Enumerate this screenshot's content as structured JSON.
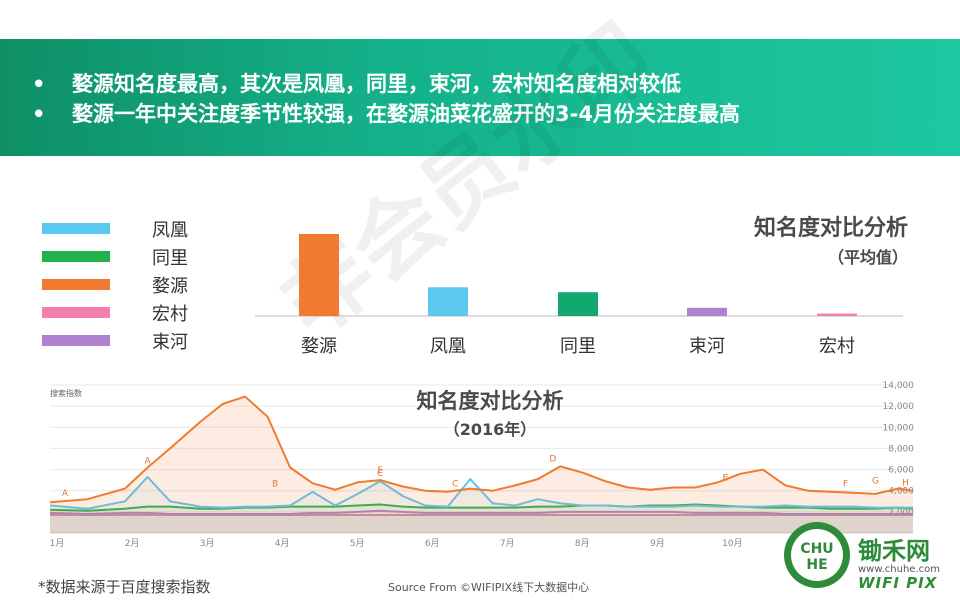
{
  "banner": {
    "bullet": "•",
    "line1": "婺源知名度最高，其次是凤凰，同里，束河，宏村知名度相对较低",
    "line2": "婺源一年中关注度季节性较强，在婺源油菜花盛开的3-4月份关注度最高"
  },
  "watermark": "非会员水印",
  "legend": [
    {
      "name": "凤凰",
      "color": "#5bc8f0"
    },
    {
      "name": "同里",
      "color": "#22b24c"
    },
    {
      "name": "婺源",
      "color": "#f07b2e"
    },
    {
      "name": "宏村",
      "color": "#f27fac"
    },
    {
      "name": "束河",
      "color": "#b081cc"
    }
  ],
  "colors": {
    "accent": "#14b18a",
    "banner_start": "#0f8f66"
  },
  "chart_data": [
    {
      "type": "bar",
      "title": "知名度对比分析",
      "subtitle": "（平均值）",
      "categories": [
        "婺源",
        "凤凰",
        "同里",
        "束河",
        "宏村"
      ],
      "values": [
        100,
        35,
        29,
        10,
        3
      ],
      "colors": [
        "#f07b2e",
        "#5bc8f0",
        "#12a86e",
        "#b081cc",
        "#f27fac"
      ],
      "ylim": [
        0,
        100
      ]
    },
    {
      "type": "area",
      "title": "知名度对比分析",
      "subtitle": "（2016年）",
      "ylabel": "搜索指数",
      "ylim": [
        0,
        14000
      ],
      "yticks": [
        "2,000",
        "4,000",
        "6,000",
        "8,000",
        "10,000",
        "12,000",
        "14,000"
      ],
      "ytick_values": [
        2000,
        4000,
        6000,
        8000,
        10000,
        12000,
        14000
      ],
      "xticks": [
        "1月",
        "2月",
        "3月",
        "4月",
        "5月",
        "6月",
        "7月",
        "8月",
        "9月",
        "10月"
      ],
      "x": [
        0,
        0.5,
        1,
        1.3,
        1.6,
        2,
        2.3,
        2.6,
        2.9,
        3.2,
        3.5,
        3.8,
        4.1,
        4.4,
        4.7,
        5,
        5.3,
        5.6,
        5.9,
        6.2,
        6.5,
        6.8,
        7.1,
        7.4,
        7.7,
        8,
        8.3,
        8.6,
        8.9,
        9.2,
        9.5,
        9.8,
        10.1,
        10.4,
        10.7,
        11,
        11.3,
        11.5
      ],
      "series": [
        {
          "name": "婺源",
          "color": "#f07b2e",
          "values": [
            2900,
            3200,
            4200,
            6200,
            8000,
            10500,
            12200,
            12900,
            11000,
            6200,
            4700,
            4100,
            4800,
            5000,
            4400,
            4000,
            3900,
            4200,
            4000,
            4500,
            5100,
            6300,
            5700,
            4900,
            4300,
            4100,
            4300,
            4300,
            4800,
            5600,
            6000,
            4500,
            4000,
            3900,
            3800,
            3700,
            4200,
            4000
          ]
        },
        {
          "name": "凤凰",
          "color": "#5bc8f0",
          "values": [
            2600,
            2300,
            3000,
            5300,
            3000,
            2500,
            2400,
            2500,
            2500,
            2600,
            3900,
            2600,
            3700,
            4900,
            3500,
            2600,
            2500,
            5100,
            2800,
            2600,
            3200,
            2800,
            2600,
            2600,
            2500,
            2500,
            2500,
            2600,
            2500,
            2500,
            2500,
            2600,
            2500,
            2500,
            2500,
            2400,
            2400,
            2400
          ]
        },
        {
          "name": "同里",
          "color": "#22b24c",
          "values": [
            2200,
            2100,
            2300,
            2500,
            2500,
            2300,
            2300,
            2400,
            2400,
            2500,
            2500,
            2500,
            2600,
            2700,
            2500,
            2400,
            2400,
            2400,
            2400,
            2400,
            2500,
            2500,
            2600,
            2600,
            2500,
            2600,
            2600,
            2700,
            2600,
            2500,
            2400,
            2400,
            2400,
            2300,
            2300,
            2300,
            2400,
            2300
          ]
        },
        {
          "name": "束河",
          "color": "#b081cc",
          "values": [
            1900,
            1800,
            1900,
            1900,
            1800,
            1800,
            1800,
            1800,
            1800,
            1800,
            1900,
            1900,
            2000,
            2100,
            2000,
            1900,
            1900,
            1900,
            1900,
            1900,
            1900,
            2000,
            2000,
            2000,
            2000,
            2000,
            2000,
            1900,
            1900,
            1900,
            1900,
            1800,
            1800,
            1800,
            1800,
            1800,
            1800,
            1800
          ]
        },
        {
          "name": "宏村",
          "color": "#f27fac",
          "values": [
            1700,
            1700,
            1700,
            1700,
            1700,
            1700,
            1700,
            1700,
            1700,
            1700,
            1700,
            1700,
            1700,
            1700,
            1700,
            1700,
            1700,
            1700,
            1700,
            1700,
            1700,
            1700,
            1700,
            1700,
            1700,
            1700,
            1700,
            1700,
            1700,
            1700,
            1700,
            1700,
            1700,
            1700,
            1700,
            1700,
            1700,
            1700
          ]
        }
      ],
      "annotations": [
        {
          "label": "A",
          "x": 0.2,
          "y": 3100
        },
        {
          "label": "A",
          "x": 1.3,
          "y": 6200
        },
        {
          "label": "B",
          "x": 3.0,
          "y": 4000
        },
        {
          "label": "C",
          "x": 4.4,
          "y": 5000
        },
        {
          "label": "E",
          "x": 4.4,
          "y": 5300
        },
        {
          "label": "C",
          "x": 5.4,
          "y": 4000
        },
        {
          "label": "D",
          "x": 6.7,
          "y": 6400
        },
        {
          "label": "E",
          "x": 9.0,
          "y": 4600
        },
        {
          "label": "F",
          "x": 10.6,
          "y": 4000
        },
        {
          "label": "G",
          "x": 11.0,
          "y": 4300
        },
        {
          "label": "H",
          "x": 11.4,
          "y": 4100
        }
      ]
    }
  ],
  "footnote": "*数据来源于百度搜索指数",
  "source": "Source From ©WIFIPIX线下大数据中心",
  "brand": {
    "name_cn": "锄禾网",
    "url": "www.chuhe.com",
    "name_en": "WIFI PIX",
    "logo_text": "CHU HE"
  }
}
